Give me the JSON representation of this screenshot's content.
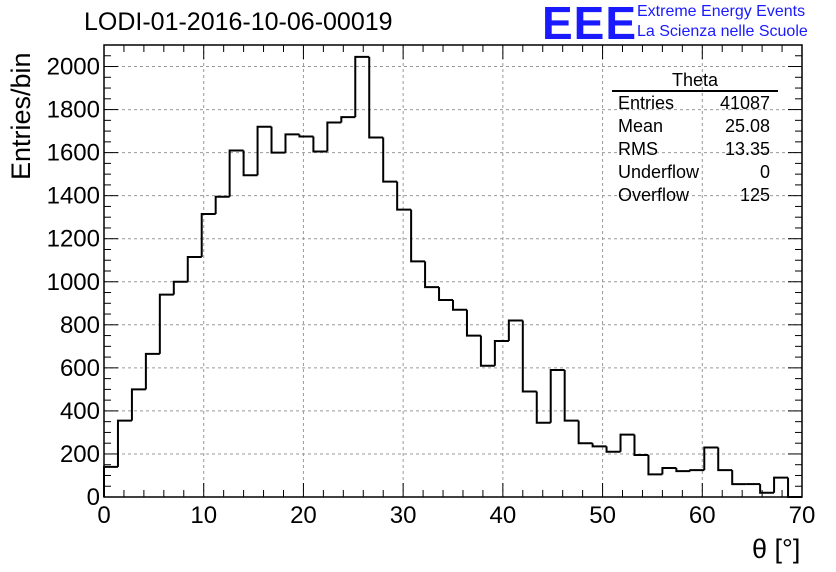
{
  "title": "LODI-01-2016-10-06-00019",
  "logo": {
    "mark": "EEE",
    "line1": "Extreme Energy Events",
    "line2": "La Scienza nelle Scuole",
    "color": "#1a1aff"
  },
  "stats_box": {
    "title": "Theta",
    "rows": [
      {
        "label": "Entries",
        "value": "41087"
      },
      {
        "label": "Mean",
        "value": "25.08"
      },
      {
        "label": "RMS",
        "value": "13.35"
      },
      {
        "label": "Underflow",
        "value": "0"
      },
      {
        "label": "Overflow",
        "value": "125"
      }
    ]
  },
  "chart_data": {
    "type": "histogram",
    "title": "LODI-01-2016-10-06-00019",
    "xlabel": "θ [°]",
    "ylabel": "Entries/bin",
    "xlim": [
      0,
      70
    ],
    "ylim": [
      0,
      2100
    ],
    "x_ticks": [
      0,
      10,
      20,
      30,
      40,
      50,
      60,
      70
    ],
    "y_ticks": [
      0,
      200,
      400,
      600,
      800,
      1000,
      1200,
      1400,
      1600,
      1800,
      2000
    ],
    "grid": true,
    "bin_width": 1.4,
    "bin_edges_start": 0,
    "values": [
      140,
      355,
      500,
      665,
      940,
      1000,
      1115,
      1315,
      1395,
      1610,
      1495,
      1720,
      1600,
      1685,
      1675,
      1605,
      1740,
      1765,
      2045,
      1670,
      1465,
      1335,
      1095,
      975,
      915,
      870,
      750,
      610,
      725,
      820,
      490,
      345,
      590,
      355,
      250,
      235,
      210,
      290,
      195,
      105,
      135,
      120,
      125,
      230,
      125,
      60,
      60,
      20,
      90,
      0
    ]
  }
}
